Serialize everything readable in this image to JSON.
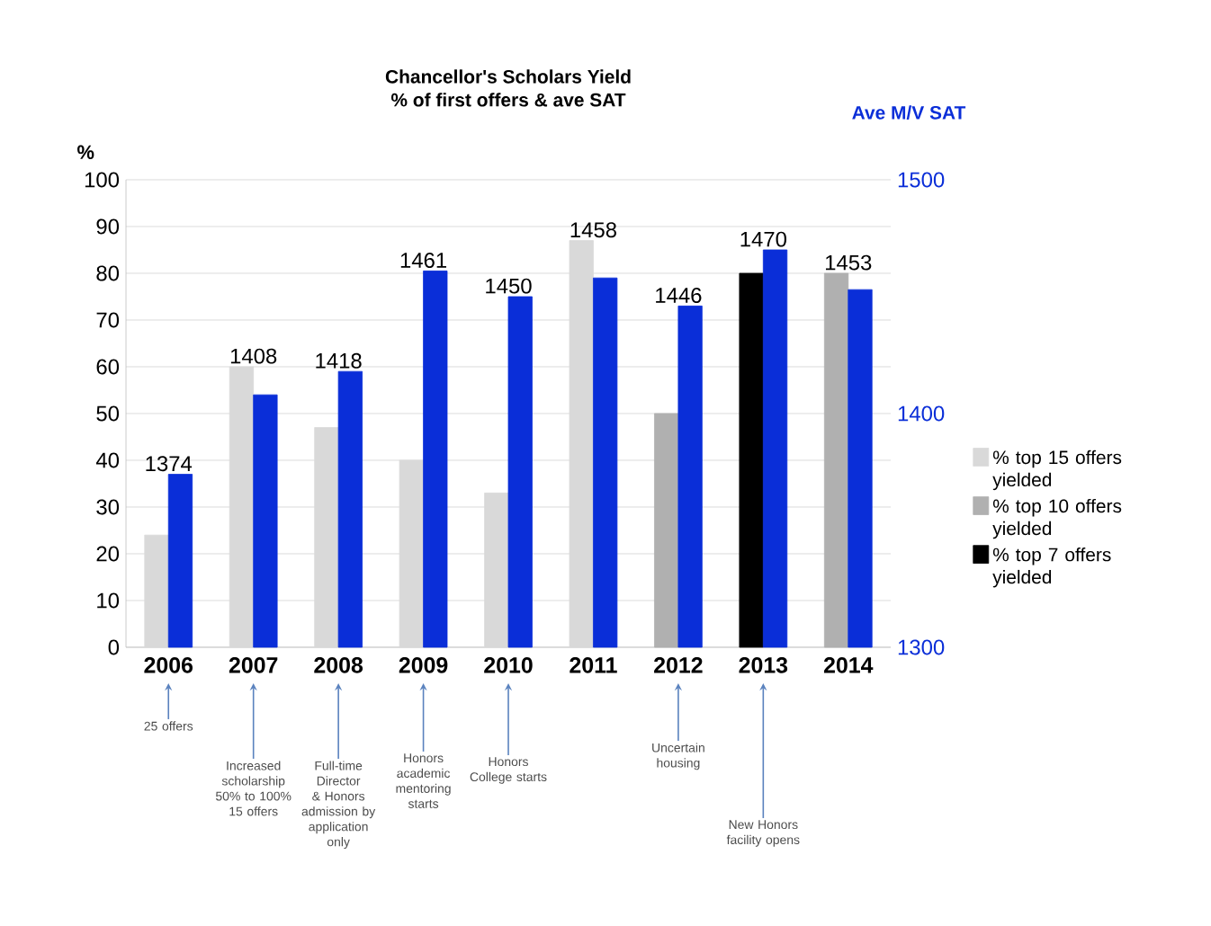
{
  "chart_data": {
    "type": "bar",
    "title": "Chancellor's Scholars Yield",
    "subtitle": "% of first offers & ave SAT",
    "ylabel": "%",
    "y2label": "Ave M/V SAT",
    "categories": [
      "2006",
      "2007",
      "2008",
      "2009",
      "2010",
      "2011",
      "2012",
      "2013",
      "2014"
    ],
    "series": [
      {
        "name": "% top 15 offers yielded",
        "color": "#d9d9d9",
        "values": [
          24,
          60,
          47,
          40,
          33,
          87,
          null,
          null,
          null
        ]
      },
      {
        "name": "% top 10 offers yielded",
        "color": "#b0b0b0",
        "values": [
          null,
          null,
          null,
          null,
          null,
          null,
          50,
          null,
          80
        ]
      },
      {
        "name": "% top 7 offers yielded",
        "color": "#000000",
        "values": [
          null,
          null,
          null,
          null,
          null,
          null,
          null,
          80,
          null
        ]
      },
      {
        "color": "#0a2ed8",
        "axis": "y2",
        "values": [
          1374,
          1408,
          1418,
          1461,
          1450,
          1458,
          1446,
          1470,
          1453
        ],
        "value_labels": [
          "1374",
          "1408",
          "1418",
          "1461",
          "1450",
          "1458",
          "1446",
          "1470",
          "1453"
        ]
      }
    ],
    "ylim": [
      0,
      100
    ],
    "yticks": [
      0,
      10,
      20,
      30,
      40,
      50,
      60,
      70,
      80,
      90,
      100
    ],
    "y2lim": [
      1300,
      1500
    ],
    "y2ticks": [
      1300,
      1400,
      1500
    ],
    "grid": "y",
    "legend": "right",
    "annotations": [
      "25 offers",
      "Increased scholarship 50% to 100% 15 offers",
      "Full-time Director & Honors admission by application only",
      "Honors academic mentoring starts",
      "Honors College starts",
      "Uncertain housing",
      "New Honors facility opens"
    ]
  }
}
